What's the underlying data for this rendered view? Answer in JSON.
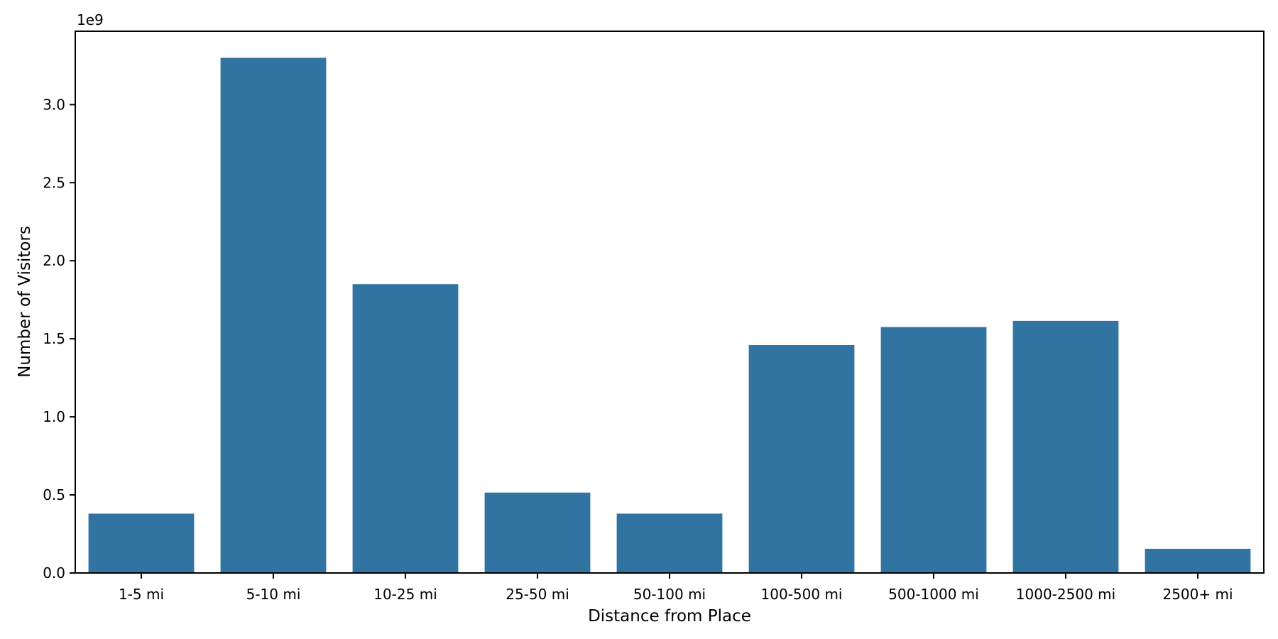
{
  "chart_data": {
    "type": "bar",
    "title": "",
    "xlabel": "Distance from Place",
    "ylabel": "Number of Visitors",
    "y_offset_text": "1e9",
    "categories": [
      "1-5 mi",
      "5-10 mi",
      "10-25 mi",
      "25-50 mi",
      "50-100 mi",
      "100-500 mi",
      "500-1000 mi",
      "1000-2500 mi",
      "2500+ mi"
    ],
    "values": [
      380000000,
      3300000000,
      1850000000,
      515000000,
      380000000,
      1460000000,
      1575000000,
      1615000000,
      155000000
    ],
    "bar_color": "#3274a1",
    "axis_color": "#000000",
    "background_color": "#ffffff",
    "ylim": [
      0,
      3470000000
    ],
    "yticks": [
      0,
      500000000,
      1000000000,
      1500000000,
      2000000000,
      2500000000,
      3000000000
    ],
    "ytick_labels": [
      "0.0",
      "0.5",
      "1.0",
      "1.5",
      "2.0",
      "2.5",
      "3.0"
    ],
    "bar_width_fraction": 0.8,
    "grid": false,
    "legend": "none"
  }
}
